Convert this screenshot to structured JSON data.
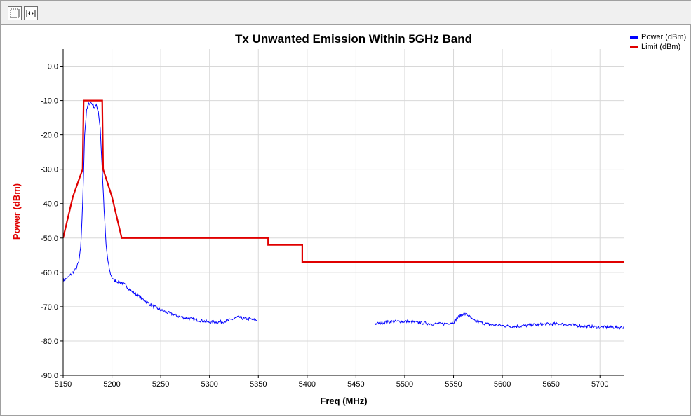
{
  "toolbar": {
    "buttons": [
      {
        "name": "select-tool-button",
        "icon": "dashed-rect-icon"
      },
      {
        "name": "fit-tool-button",
        "icon": "fit-arrows-icon"
      }
    ]
  },
  "chart_data": {
    "type": "line",
    "title": "Tx Unwanted Emission Within 5GHz Band",
    "xlabel": "Freq (MHz)",
    "ylabel": "Power (dBm)",
    "xlim": [
      5150,
      5725
    ],
    "ylim": [
      -90,
      5
    ],
    "xticks": [
      5150,
      5200,
      5250,
      5300,
      5350,
      5400,
      5450,
      5500,
      5550,
      5600,
      5650,
      5700
    ],
    "yticks": [
      0,
      -10,
      -20,
      -30,
      -40,
      -50,
      -60,
      -70,
      -80,
      -90
    ],
    "ytick_labels": [
      "0.0",
      "-10.0",
      "-20.0",
      "-30.0",
      "-40.0",
      "-50.0",
      "-60.0",
      "-70.0",
      "-80.0",
      "-90.0"
    ],
    "grid": true,
    "legend_position": "top-right",
    "ylabel_color": "#e00000",
    "series": [
      {
        "name": "Power (dBm)",
        "color": "#0000ff",
        "segments": [
          [
            [
              5150,
              -62.5
            ],
            [
              5155,
              -61.5
            ],
            [
              5160,
              -60
            ],
            [
              5163,
              -59
            ],
            [
              5166,
              -57
            ],
            [
              5168,
              -53
            ],
            [
              5170,
              -40
            ],
            [
              5172,
              -20
            ],
            [
              5174,
              -13
            ],
            [
              5176,
              -11
            ],
            [
              5178,
              -10.5
            ],
            [
              5180,
              -11
            ],
            [
              5182,
              -12
            ],
            [
              5184,
              -11.5
            ],
            [
              5186,
              -13
            ],
            [
              5188,
              -18
            ],
            [
              5190,
              -30
            ],
            [
              5192,
              -42
            ],
            [
              5194,
              -52
            ],
            [
              5196,
              -57
            ],
            [
              5198,
              -60
            ],
            [
              5200,
              -61.5
            ],
            [
              5203,
              -62.5
            ],
            [
              5210,
              -63
            ],
            [
              5215,
              -64
            ],
            [
              5220,
              -65.5
            ],
            [
              5230,
              -67.5
            ],
            [
              5240,
              -69.5
            ],
            [
              5250,
              -71
            ],
            [
              5260,
              -72
            ],
            [
              5270,
              -73
            ],
            [
              5280,
              -73.5
            ],
            [
              5290,
              -74
            ],
            [
              5300,
              -74.5
            ],
            [
              5310,
              -74.5
            ],
            [
              5320,
              -74
            ],
            [
              5325,
              -73.5
            ],
            [
              5330,
              -73
            ],
            [
              5335,
              -73.5
            ],
            [
              5340,
              -73.5
            ],
            [
              5345,
              -73.8
            ],
            [
              5349,
              -74
            ]
          ],
          [
            [
              5470,
              -75
            ],
            [
              5480,
              -74.5
            ],
            [
              5490,
              -74.3
            ],
            [
              5500,
              -74.3
            ],
            [
              5510,
              -74.5
            ],
            [
              5520,
              -74.8
            ],
            [
              5530,
              -75
            ],
            [
              5540,
              -75
            ],
            [
              5550,
              -74.5
            ],
            [
              5555,
              -73
            ],
            [
              5560,
              -72
            ],
            [
              5565,
              -72.5
            ],
            [
              5570,
              -74
            ],
            [
              5580,
              -74.8
            ],
            [
              5590,
              -75.3
            ],
            [
              5600,
              -75.5
            ],
            [
              5610,
              -75.8
            ],
            [
              5620,
              -75.6
            ],
            [
              5630,
              -75.3
            ],
            [
              5640,
              -75.2
            ],
            [
              5650,
              -75
            ],
            [
              5660,
              -75
            ],
            [
              5670,
              -75.3
            ],
            [
              5680,
              -75.6
            ],
            [
              5690,
              -75.8
            ],
            [
              5700,
              -76
            ],
            [
              5710,
              -76
            ],
            [
              5725,
              -76
            ]
          ]
        ]
      },
      {
        "name": "Limit (dBm)",
        "color": "#e00000",
        "segments": [
          [
            [
              5150,
              -50
            ],
            [
              5160,
              -38
            ],
            [
              5170,
              -30
            ],
            [
              5171,
              -10
            ],
            [
              5190,
              -10
            ],
            [
              5191,
              -30
            ],
            [
              5200,
              -38
            ],
            [
              5210,
              -50
            ],
            [
              5360,
              -50
            ],
            [
              5360,
              -52
            ],
            [
              5395,
              -52
            ],
            [
              5395,
              -57
            ],
            [
              5725,
              -57
            ]
          ]
        ]
      }
    ]
  }
}
